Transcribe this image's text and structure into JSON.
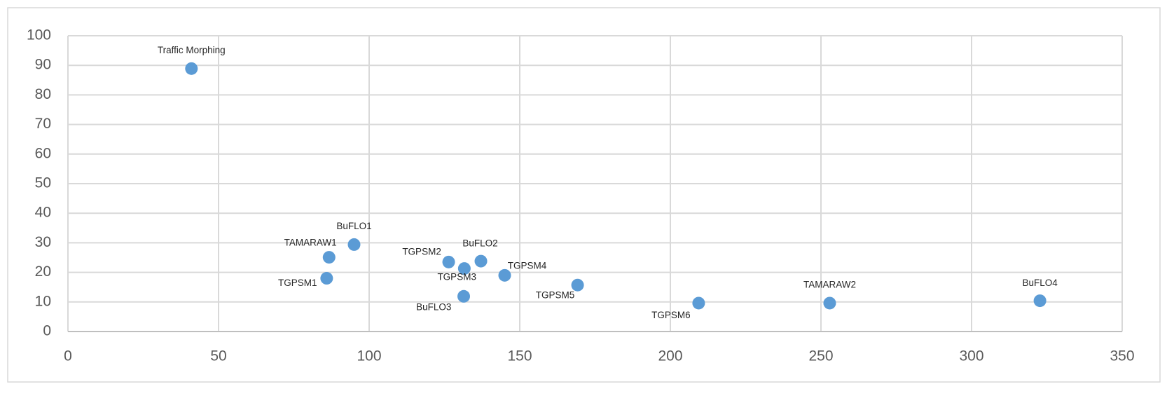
{
  "chart_data": {
    "type": "scatter",
    "series": [
      {
        "color": "#5b9bd5",
        "x": [
          41,
          95,
          86.7,
          85.9,
          126.4,
          131.6,
          137.1,
          131.4,
          145,
          169.2,
          209.4,
          252.9,
          322.7
        ],
        "values": [
          88.9,
          29.4,
          25.1,
          18,
          23.5,
          21.3,
          23.8,
          11.9,
          19,
          15.7,
          9.6,
          9.6,
          10.4
        ],
        "point_labels": [
          "Traffic Morphing",
          "BuFLO1",
          "TAMARAW1",
          "TGPSM1",
          "TGPSM2",
          "TGPSM3",
          "BuFLO2",
          "BuFLO3",
          "TGPSM4",
          "TGPSM5",
          "TGPSM6",
          "TAMARAW2",
          "BuFLO4"
        ]
      }
    ],
    "xlim": [
      0,
      350
    ],
    "xticks": [
      0,
      50,
      100,
      150,
      200,
      250,
      300,
      350
    ],
    "ylim": [
      0,
      100
    ],
    "yticks": [
      0,
      10,
      20,
      30,
      40,
      50,
      60,
      70,
      80,
      90,
      100
    ],
    "grid": true
  }
}
